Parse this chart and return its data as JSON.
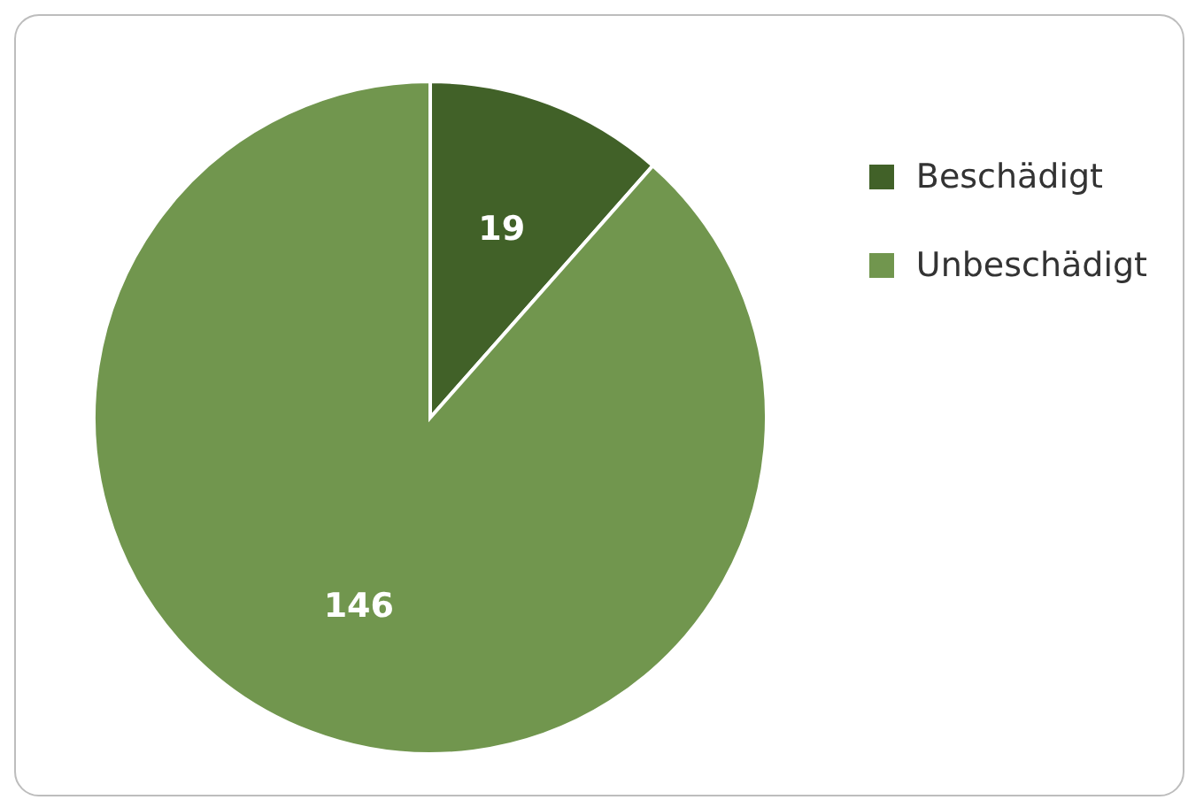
{
  "chart_data": {
    "type": "pie",
    "categories": [
      "Beschädigt",
      "Unbeschädigt"
    ],
    "values": [
      19,
      146
    ],
    "colors": [
      "#416128",
      "#71964e"
    ],
    "data_labels": true,
    "legend": "top right"
  }
}
